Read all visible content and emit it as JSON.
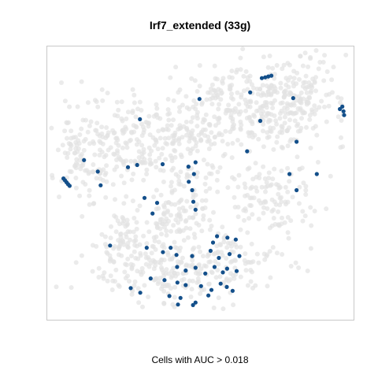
{
  "chart_data": {
    "type": "scatter",
    "title": "Irf7_extended (33g)",
    "xlabel": "Cells with AUC > 0.018",
    "ylabel": "",
    "xlim": [
      0,
      100
    ],
    "ylim": [
      0,
      100
    ],
    "grid": false,
    "legend": "none",
    "background_points": {
      "color": "#e3e3e3",
      "seed": 7,
      "clusters": [
        {
          "cx": 80,
          "cy": 82,
          "sx": 9,
          "sy": 8,
          "n": 230
        },
        {
          "cx": 57,
          "cy": 81,
          "sx": 8,
          "sy": 6,
          "n": 110
        },
        {
          "cx": 27,
          "cy": 64,
          "sx": 12,
          "sy": 10,
          "n": 230
        },
        {
          "cx": 12,
          "cy": 58,
          "sx": 5,
          "sy": 7,
          "n": 70
        },
        {
          "cx": 45,
          "cy": 68,
          "sx": 6,
          "sy": 4,
          "n": 50
        },
        {
          "cx": 63,
          "cy": 70,
          "sx": 10,
          "sy": 5,
          "n": 90
        },
        {
          "cx": 72,
          "cy": 45,
          "sx": 9,
          "sy": 7,
          "n": 130
        },
        {
          "cx": 43,
          "cy": 40,
          "sx": 6,
          "sy": 8,
          "n": 110
        },
        {
          "cx": 44,
          "cy": 20,
          "sx": 14,
          "sy": 7,
          "n": 290
        },
        {
          "cx": 26,
          "cy": 32,
          "sx": 5,
          "sy": 5,
          "n": 50
        }
      ]
    },
    "series": [
      {
        "color": "#134f8a",
        "points": [
          [
            70.0,
            88.3
          ],
          [
            71.1,
            88.6
          ],
          [
            72.1,
            88.9
          ],
          [
            73.1,
            89.2
          ],
          [
            66.2,
            83.1
          ],
          [
            49.7,
            80.7
          ],
          [
            80.2,
            81.0
          ],
          [
            96.2,
            77.9
          ],
          [
            96.6,
            76.2
          ],
          [
            96.8,
            74.8
          ],
          [
            95.4,
            77.0
          ],
          [
            69.5,
            72.7
          ],
          [
            30.3,
            73.3
          ],
          [
            81.3,
            65.1
          ],
          [
            65.2,
            61.6
          ],
          [
            12.1,
            58.4
          ],
          [
            16.6,
            54.2
          ],
          [
            26.4,
            55.8
          ],
          [
            29.4,
            56.6
          ],
          [
            37.7,
            56.9
          ],
          [
            48.4,
            57.6
          ],
          [
            46.1,
            56.0
          ],
          [
            5.4,
            51.7
          ],
          [
            5.9,
            51.0
          ],
          [
            6.4,
            50.3
          ],
          [
            6.9,
            49.6
          ],
          [
            7.4,
            49.0
          ],
          [
            17.5,
            49.2
          ],
          [
            31.8,
            44.6
          ],
          [
            35.9,
            42.8
          ],
          [
            34.4,
            38.9
          ],
          [
            47.9,
            53.3
          ],
          [
            46.2,
            50.5
          ],
          [
            47.3,
            47.4
          ],
          [
            47.7,
            43.2
          ],
          [
            48.4,
            40.3
          ],
          [
            79.0,
            53.3
          ],
          [
            87.9,
            53.3
          ],
          [
            81.3,
            47.4
          ],
          [
            55.4,
            30.6
          ],
          [
            58.8,
            30.1
          ],
          [
            61.5,
            29.4
          ],
          [
            54.1,
            28.3
          ],
          [
            20.6,
            27.2
          ],
          [
            32.5,
            26.4
          ],
          [
            40.3,
            26.4
          ],
          [
            37.8,
            24.8
          ],
          [
            42.2,
            23.8
          ],
          [
            47.3,
            23.4
          ],
          [
            53.3,
            25.3
          ],
          [
            56.0,
            22.7
          ],
          [
            59.5,
            24.1
          ],
          [
            62.7,
            23.4
          ],
          [
            42.4,
            19.4
          ],
          [
            45.2,
            18.1
          ],
          [
            48.4,
            19.1
          ],
          [
            51.6,
            17.0
          ],
          [
            54.6,
            19.4
          ],
          [
            57.3,
            17.4
          ],
          [
            58.7,
            18.8
          ],
          [
            61.8,
            17.9
          ],
          [
            33.8,
            15.2
          ],
          [
            38.3,
            14.6
          ],
          [
            42.5,
            13.7
          ],
          [
            45.2,
            12.8
          ],
          [
            50.2,
            12.4
          ],
          [
            53.6,
            11.0
          ],
          [
            56.6,
            13.3
          ],
          [
            58.6,
            12.1
          ],
          [
            60.5,
            10.7
          ],
          [
            52.6,
            9.0
          ],
          [
            27.3,
            11.7
          ],
          [
            30.4,
            10.0
          ],
          [
            39.9,
            8.8
          ],
          [
            43.5,
            8.1
          ],
          [
            48.4,
            6.4
          ],
          [
            42.7,
            5.7
          ],
          [
            47.6,
            5.5
          ]
        ]
      }
    ]
  }
}
